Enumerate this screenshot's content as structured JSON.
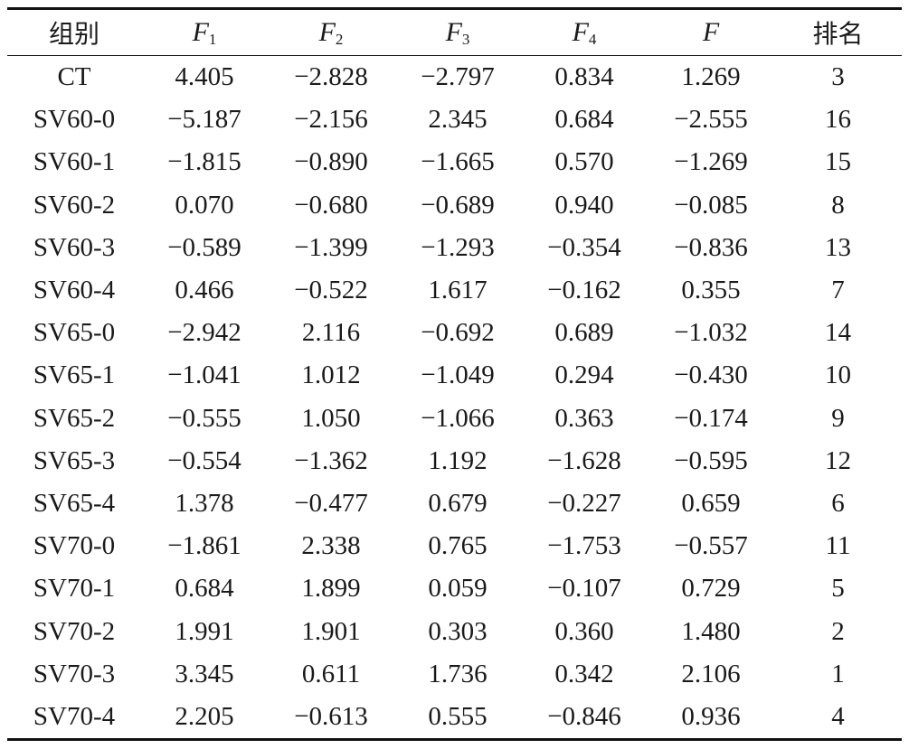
{
  "table": {
    "headers": [
      {
        "main": "组别",
        "sub": ""
      },
      {
        "main": "F",
        "sub": "1"
      },
      {
        "main": "F",
        "sub": "2"
      },
      {
        "main": "F",
        "sub": "3"
      },
      {
        "main": "F",
        "sub": "4"
      },
      {
        "main": "F",
        "sub": ""
      },
      {
        "main": "排名",
        "sub": ""
      }
    ],
    "rows": [
      [
        "CT",
        "4.405",
        "−2.828",
        "−2.797",
        "0.834",
        "1.269",
        "3"
      ],
      [
        "SV60-0",
        "−5.187",
        "−2.156",
        "2.345",
        "0.684",
        "−2.555",
        "16"
      ],
      [
        "SV60-1",
        "−1.815",
        "−0.890",
        "−1.665",
        "0.570",
        "−1.269",
        "15"
      ],
      [
        "SV60-2",
        "0.070",
        "−0.680",
        "−0.689",
        "0.940",
        "−0.085",
        "8"
      ],
      [
        "SV60-3",
        "−0.589",
        "−1.399",
        "−1.293",
        "−0.354",
        "−0.836",
        "13"
      ],
      [
        "SV60-4",
        "0.466",
        "−0.522",
        "1.617",
        "−0.162",
        "0.355",
        "7"
      ],
      [
        "SV65-0",
        "−2.942",
        "2.116",
        "−0.692",
        "0.689",
        "−1.032",
        "14"
      ],
      [
        "SV65-1",
        "−1.041",
        "1.012",
        "−1.049",
        "0.294",
        "−0.430",
        "10"
      ],
      [
        "SV65-2",
        "−0.555",
        "1.050",
        "−1.066",
        "0.363",
        "−0.174",
        "9"
      ],
      [
        "SV65-3",
        "−0.554",
        "−1.362",
        "1.192",
        "−1.628",
        "−0.595",
        "12"
      ],
      [
        "SV65-4",
        "1.378",
        "−0.477",
        "0.679",
        "−0.227",
        "0.659",
        "6"
      ],
      [
        "SV70-0",
        "−1.861",
        "2.338",
        "0.765",
        "−1.753",
        "−0.557",
        "11"
      ],
      [
        "SV70-1",
        "0.684",
        "1.899",
        "0.059",
        "−0.107",
        "0.729",
        "5"
      ],
      [
        "SV70-2",
        "1.991",
        "1.901",
        "0.303",
        "0.360",
        "1.480",
        "2"
      ],
      [
        "SV70-3",
        "3.345",
        "0.611",
        "1.736",
        "0.342",
        "2.106",
        "1"
      ],
      [
        "SV70-4",
        "2.205",
        "−0.613",
        "0.555",
        "−0.846",
        "0.936",
        "4"
      ]
    ]
  }
}
